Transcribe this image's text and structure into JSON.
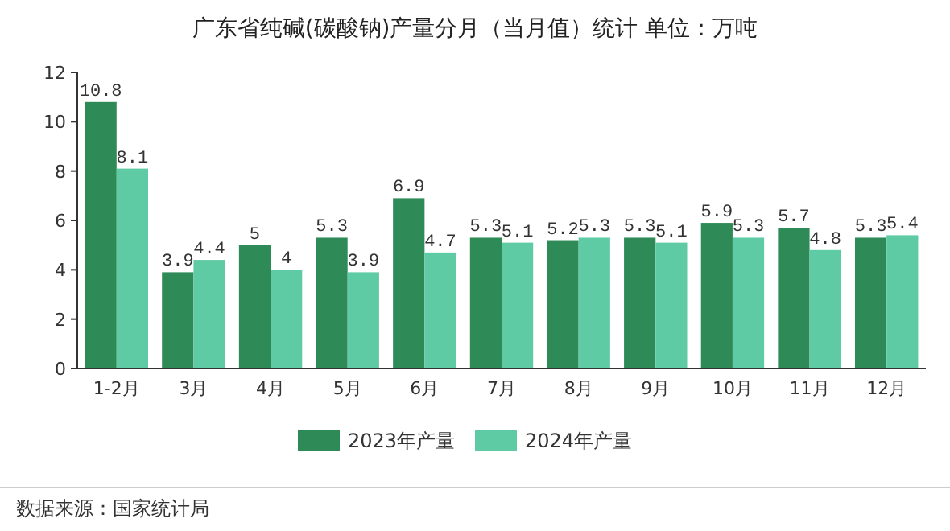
{
  "chart_data": {
    "type": "bar",
    "title": "广东省纯碱(碳酸钠)产量分月（当月值）统计 单位：万吨",
    "categories": [
      "1-2月",
      "3月",
      "4月",
      "5月",
      "6月",
      "7月",
      "8月",
      "9月",
      "10月",
      "11月",
      "12月"
    ],
    "series": [
      {
        "name": "2023年产量",
        "color": "#2e8b57",
        "values": [
          10.8,
          3.9,
          5,
          5.3,
          6.9,
          5.3,
          5.2,
          5.3,
          5.9,
          5.7,
          5.3
        ]
      },
      {
        "name": "2024年产量",
        "color": "#5fcba4",
        "values": [
          8.1,
          4.4,
          4,
          3.9,
          4.7,
          5.1,
          5.3,
          5.1,
          5.3,
          4.8,
          5.4
        ]
      }
    ],
    "ylim": [
      0,
      12
    ],
    "yticks": [
      0,
      2,
      4,
      6,
      8,
      10,
      12
    ],
    "grid": false,
    "legend": "bottom",
    "data_labels": true,
    "annotations": [
      "数据来源：国家统计局"
    ]
  }
}
